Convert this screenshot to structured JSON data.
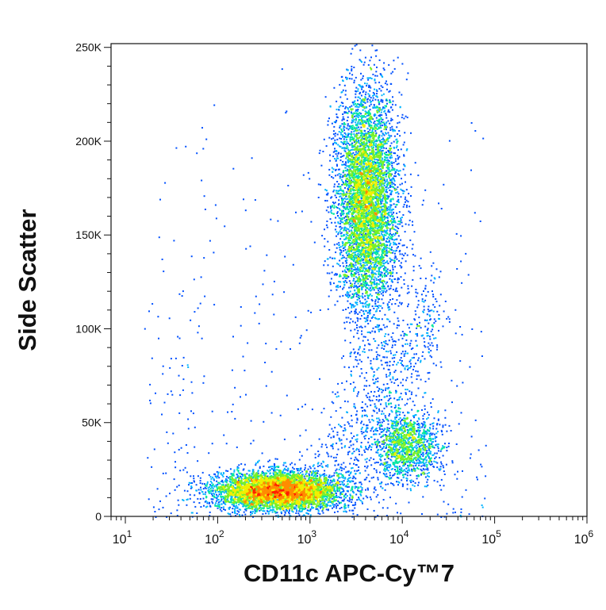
{
  "chart_data": {
    "type": "scatter",
    "subtype": "flow-cytometry-density-dot-plot",
    "xlabel": "CD11c APC-Cy™7",
    "ylabel": "Side Scatter",
    "x_scale": "log",
    "xlim": [
      7,
      1000000
    ],
    "ylim": [
      0,
      252000
    ],
    "x_ticks": [
      {
        "value": 10,
        "label": "10",
        "exp": "1"
      },
      {
        "value": 100,
        "label": "10",
        "exp": "2"
      },
      {
        "value": 1000,
        "label": "10",
        "exp": "3"
      },
      {
        "value": 10000,
        "label": "10",
        "exp": "4"
      },
      {
        "value": 100000,
        "label": "10",
        "exp": "5"
      },
      {
        "value": 1000000,
        "label": "10",
        "exp": "6"
      }
    ],
    "y_ticks": [
      {
        "value": 0,
        "label": "0"
      },
      {
        "value": 50000,
        "label": "50K"
      },
      {
        "value": 100000,
        "label": "100K"
      },
      {
        "value": 150000,
        "label": "150K"
      },
      {
        "value": 200000,
        "label": "200K"
      },
      {
        "value": 250000,
        "label": "250K"
      }
    ],
    "color_scale": [
      "#0000e0",
      "#0050ff",
      "#00b4ff",
      "#00e6a0",
      "#78f028",
      "#f0f000",
      "#ff8c00",
      "#ff1e00"
    ],
    "populations": [
      {
        "name_hidden": true,
        "x_center": 450,
        "y_center": 14000,
        "x_spread_decades": 0.34,
        "y_spread": 5000,
        "events": 5200
      },
      {
        "name_hidden": true,
        "x_center": 4000,
        "y_center": 168000,
        "x_spread_decades": 0.17,
        "y_spread": 30000,
        "events": 5600
      },
      {
        "name_hidden": true,
        "x_center": 11000,
        "y_center": 38000,
        "x_spread_decades": 0.18,
        "y_spread": 9000,
        "events": 1300
      }
    ],
    "grid": false,
    "legend": "none"
  }
}
